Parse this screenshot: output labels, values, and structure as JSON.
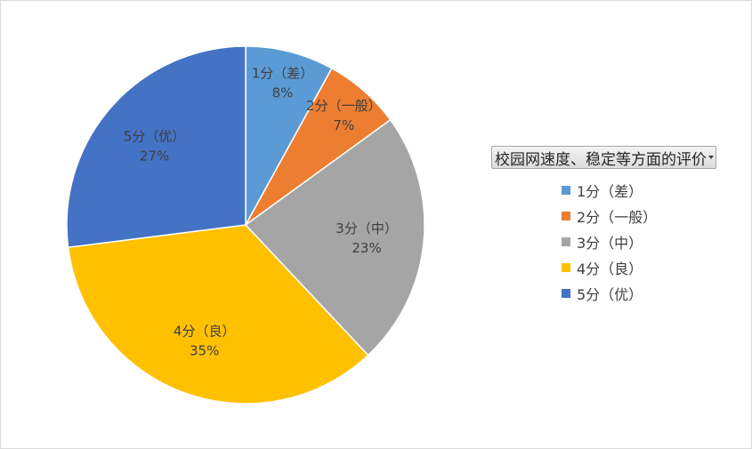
{
  "chart_data": {
    "type": "pie",
    "title": "",
    "legend_title": "校园网速度、稳定等方面的评价",
    "legend_position": "right",
    "slices": [
      {
        "label": "1分（差）",
        "percent_label": "8%",
        "value": 8,
        "color": "#5b9bd5"
      },
      {
        "label": "2分（一般）",
        "percent_label": "7%",
        "value": 7,
        "color": "#ed7d31"
      },
      {
        "label": "3分（中）",
        "percent_label": "23%",
        "value": 23,
        "color": "#a5a5a5"
      },
      {
        "label": "4分（良）",
        "percent_label": "35%",
        "value": 35,
        "color": "#ffc000"
      },
      {
        "label": "5分（优）",
        "percent_label": "27%",
        "value": 27,
        "color": "#4472c4"
      }
    ]
  }
}
